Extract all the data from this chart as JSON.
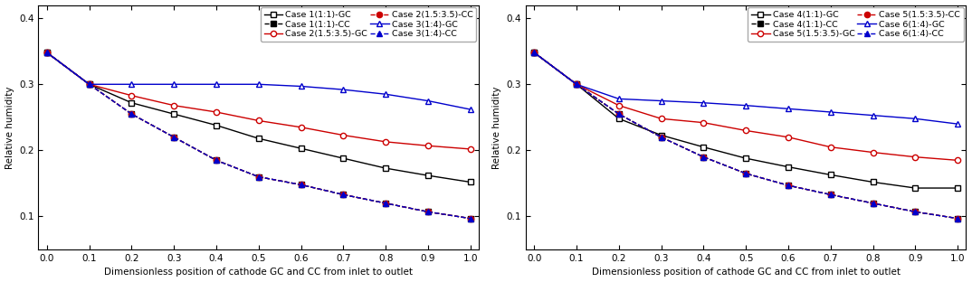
{
  "x": [
    0.0,
    0.1,
    0.2,
    0.3,
    0.4,
    0.5,
    0.6,
    0.7,
    0.8,
    0.9,
    1.0
  ],
  "left": {
    "case1_gc": [
      0.348,
      0.3,
      0.272,
      0.255,
      0.238,
      0.218,
      0.203,
      0.188,
      0.173,
      0.162,
      0.152
    ],
    "case1_cc": [
      0.348,
      0.3,
      0.255,
      0.22,
      0.185,
      0.16,
      0.148,
      0.133,
      0.12,
      0.107,
      0.097
    ],
    "case2_gc": [
      0.348,
      0.3,
      0.283,
      0.268,
      0.258,
      0.245,
      0.235,
      0.223,
      0.213,
      0.207,
      0.202
    ],
    "case2_cc": [
      0.348,
      0.3,
      0.255,
      0.22,
      0.185,
      0.16,
      0.148,
      0.133,
      0.12,
      0.107,
      0.097
    ],
    "case3_gc": [
      0.348,
      0.3,
      0.3,
      0.3,
      0.3,
      0.3,
      0.297,
      0.292,
      0.285,
      0.275,
      0.262
    ],
    "case3_cc": [
      0.348,
      0.3,
      0.255,
      0.22,
      0.185,
      0.16,
      0.148,
      0.133,
      0.12,
      0.107,
      0.097
    ]
  },
  "right": {
    "case4_gc": [
      0.348,
      0.3,
      0.248,
      0.223,
      0.205,
      0.188,
      0.175,
      0.163,
      0.152,
      0.143,
      0.143
    ],
    "case4_cc": [
      0.348,
      0.3,
      0.255,
      0.22,
      0.19,
      0.165,
      0.147,
      0.133,
      0.12,
      0.107,
      0.097
    ],
    "case5_gc": [
      0.348,
      0.3,
      0.268,
      0.248,
      0.242,
      0.23,
      0.22,
      0.205,
      0.197,
      0.19,
      0.185
    ],
    "case5_cc": [
      0.348,
      0.3,
      0.255,
      0.22,
      0.19,
      0.165,
      0.147,
      0.133,
      0.12,
      0.107,
      0.097
    ],
    "case6_gc": [
      0.348,
      0.3,
      0.278,
      0.275,
      0.272,
      0.268,
      0.263,
      0.258,
      0.253,
      0.248,
      0.24
    ],
    "case6_cc": [
      0.348,
      0.3,
      0.255,
      0.22,
      0.19,
      0.165,
      0.147,
      0.133,
      0.12,
      0.107,
      0.097
    ]
  },
  "xlabel": "Dimensionless position of cathode GC and CC from inlet to outlet",
  "ylabel": "Relative humidity",
  "ylim": [
    0.05,
    0.42
  ],
  "yticks": [
    0.1,
    0.2,
    0.3,
    0.4
  ],
  "xticks": [
    0.0,
    0.1,
    0.2,
    0.3,
    0.4,
    0.5,
    0.6,
    0.7,
    0.8,
    0.9,
    1.0
  ],
  "left_legend_gc": [
    "Case 1(1:1)-GC",
    "Case 2(1.5:3.5)-GC",
    "Case 3(1:4)-GC"
  ],
  "left_legend_cc": [
    "Case 1(1:1)-CC",
    "Case 2(1.5:3.5)-CC",
    "Case 3(1:4)-CC"
  ],
  "right_legend_gc": [
    "Case 4(1:1)-GC",
    "Case 5(1.5:3.5)-GC",
    "Case 6(1:4)-GC"
  ],
  "right_legend_cc": [
    "Case 4(1:1)-CC",
    "Case 5(1.5:3.5)-CC",
    "Case 6(1:4)-CC"
  ],
  "colors": {
    "black": "#000000",
    "red": "#cc0000",
    "blue": "#0000cc"
  },
  "legend_font_size": 6.8,
  "tick_font_size": 7.5,
  "label_font_size": 7.5
}
